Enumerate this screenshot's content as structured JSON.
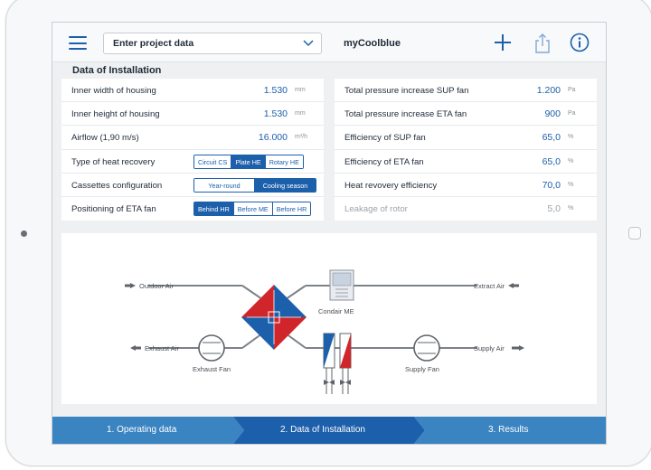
{
  "header": {
    "project_select": "Enter project data",
    "app_title": "myCoolblue"
  },
  "section_title": "Data of Installation",
  "left_rows": [
    {
      "label": "Inner width of housing",
      "value": "1.530",
      "unit": "mm"
    },
    {
      "label": "Inner height of housing",
      "value": "1.530",
      "unit": "mm"
    },
    {
      "label": "Airflow (1,90 m/s)",
      "value": "16.000",
      "unit": "m³/h"
    },
    {
      "label": "Type of heat recovery",
      "options": [
        "Circuit CS",
        "Plate HE",
        "Rotary HE"
      ],
      "selected": "Plate HE"
    },
    {
      "label": "Cassettes configuration",
      "options": [
        "Year-round",
        "Cooling season"
      ],
      "selected": "Cooling season"
    },
    {
      "label": "Positioning of ETA fan",
      "options": [
        "Behind HR",
        "Before ME",
        "Before HR"
      ],
      "selected": "Behind HR"
    }
  ],
  "right_rows": [
    {
      "label": "Total pressure increase SUP fan",
      "value": "1.200",
      "unit": "Pa"
    },
    {
      "label": "Total pressure increase ETA fan",
      "value": "900",
      "unit": "Pa"
    },
    {
      "label": "Efficiency of SUP fan",
      "value": "65,0",
      "unit": "%"
    },
    {
      "label": "Efficiency of ETA fan",
      "value": "65,0",
      "unit": "%"
    },
    {
      "label": "Heat revovery efficiency",
      "value": "70,0",
      "unit": "%"
    },
    {
      "label": "Leakage of rotor",
      "value": "5,0",
      "unit": "%",
      "disabled": true
    }
  ],
  "diagram": {
    "outdoor_air": "Outdoor Air",
    "extract_air": "Extract Air",
    "exhaust_air": "Exhaust Air",
    "supply_air": "Supply Air",
    "condair": "Condair ME",
    "exhaust_fan": "Exhaust Fan",
    "supply_fan": "Supply Fan"
  },
  "steps": [
    "1. Operating data",
    "2. Data of Installation",
    "3. Results"
  ],
  "colors": {
    "accent": "#1c5fab",
    "step_light": "#3a84c2",
    "step_dark": "#1c5fab",
    "hx_red": "#d0262b",
    "hx_blue": "#1c5fab"
  }
}
